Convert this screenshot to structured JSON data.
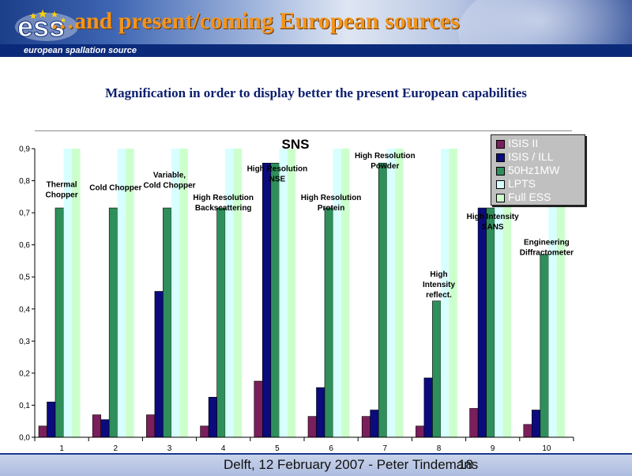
{
  "slide": {
    "title": "…and present/coming European sources",
    "logo_text": "european spallation source",
    "subtitle": "Magnification in order to display better the present European capabilities",
    "footer": "Delft, 12 February 2007 - Peter Tindemans",
    "page_number": "18"
  },
  "chart_data": {
    "type": "bar",
    "title": "SNS",
    "categories": [
      "1",
      "2",
      "3",
      "4",
      "5",
      "6",
      "7",
      "8",
      "9",
      "10"
    ],
    "ylim": [
      0,
      0.9
    ],
    "yticks": [
      "0,0",
      "0,1",
      "0,2",
      "0,3",
      "0,4",
      "0,5",
      "0,6",
      "0,7",
      "0,8",
      "0,9"
    ],
    "grid": false,
    "legend_position": "top-right",
    "series": [
      {
        "name": "ISIS II",
        "color": "#7a1f5c",
        "values": [
          0.035,
          0.07,
          0.07,
          0.035,
          0.175,
          0.065,
          0.065,
          0.035,
          0.09,
          0.04
        ]
      },
      {
        "name": "ISIS / ILL",
        "color": "#0b0b7e",
        "values": [
          0.11,
          0.055,
          0.455,
          0.125,
          0.855,
          0.155,
          0.085,
          0.185,
          0.715,
          0.085
        ]
      },
      {
        "name": "50Hz1MW",
        "color": "#2f8f5b",
        "values": [
          0.715,
          0.715,
          0.715,
          0.715,
          0.855,
          0.715,
          0.855,
          0.425,
          0.715,
          0.57
        ]
      },
      {
        "name": "LPTS",
        "color": "#d8ffff",
        "values": [
          0.9,
          0.9,
          0.9,
          0.9,
          0.9,
          0.9,
          0.9,
          0.9,
          0.9,
          0.9
        ]
      },
      {
        "name": "Full ESS",
        "color": "#ccffcc",
        "values": [
          0.9,
          0.9,
          0.9,
          0.9,
          0.9,
          0.9,
          0.9,
          0.9,
          0.9,
          0.9
        ]
      }
    ],
    "annotations": [
      {
        "category": "1",
        "lines": [
          "Thermal",
          "Chopper"
        ],
        "value": 0.78
      },
      {
        "category": "2",
        "lines": [
          "Cold Chopper"
        ],
        "value": 0.77
      },
      {
        "category": "3",
        "lines": [
          "Variable,",
          "Cold Chopper"
        ],
        "value": 0.81
      },
      {
        "category": "4",
        "lines": [
          "High Resolution",
          "Backscattering"
        ],
        "value": 0.74
      },
      {
        "category": "5",
        "lines": [
          "High Resolution",
          "NSE"
        ],
        "value": 0.83
      },
      {
        "category": "6",
        "lines": [
          "High Resolution",
          "Protein"
        ],
        "value": 0.74
      },
      {
        "category": "7",
        "lines": [
          "High Resolution",
          "Powder"
        ],
        "value": 0.87
      },
      {
        "category": "8",
        "lines": [
          "High",
          "Intensity",
          "reflect."
        ],
        "value": 0.5
      },
      {
        "category": "9",
        "lines": [
          "High Intensity",
          "SANS"
        ],
        "value": 0.68
      },
      {
        "category": "10",
        "lines": [
          "Engineering",
          "Diffractometer"
        ],
        "value": 0.6
      }
    ]
  }
}
